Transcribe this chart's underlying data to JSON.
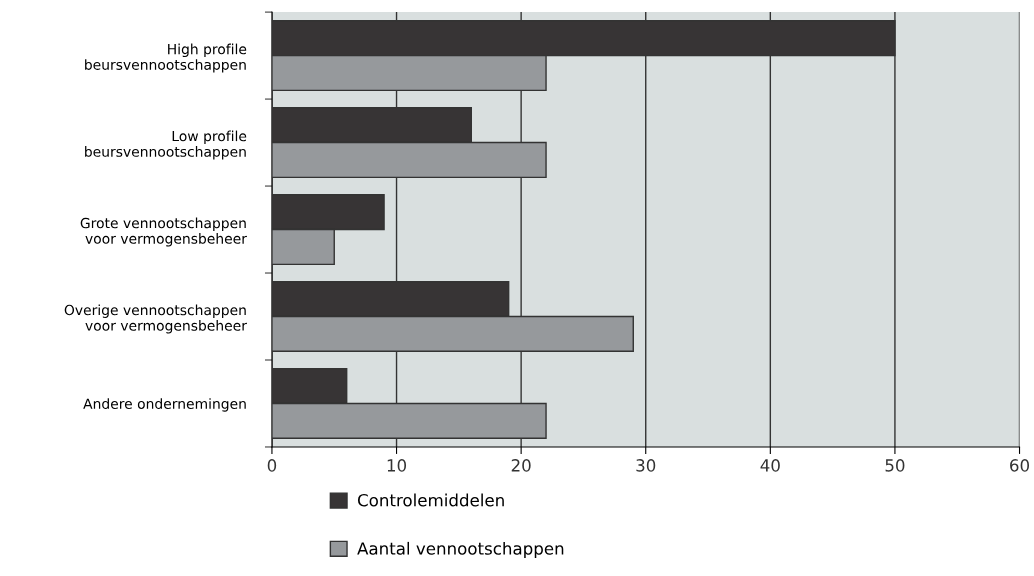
{
  "chart_data": {
    "type": "bar",
    "orientation": "horizontal",
    "categories": [
      "High profile\nbeursvennootschappen",
      "Low profile\nbeursvennootschappen",
      "Grote vennootschappen\nvoor vermogensbeheer",
      "Overige vennootschappen\nvoor vermogensbeheer",
      "Andere ondernemingen"
    ],
    "series": [
      {
        "name": "Controlemiddelen",
        "color": "#373435",
        "values": [
          50,
          16,
          9,
          19,
          6
        ]
      },
      {
        "name": "Aantal vennootschappen",
        "color": "#96999c",
        "values": [
          22,
          22,
          5,
          29,
          22
        ]
      }
    ],
    "xlim": [
      0,
      60
    ],
    "xticks": [
      0,
      10,
      20,
      30,
      40,
      50,
      60
    ],
    "grid": "x",
    "legend": "bottom"
  }
}
